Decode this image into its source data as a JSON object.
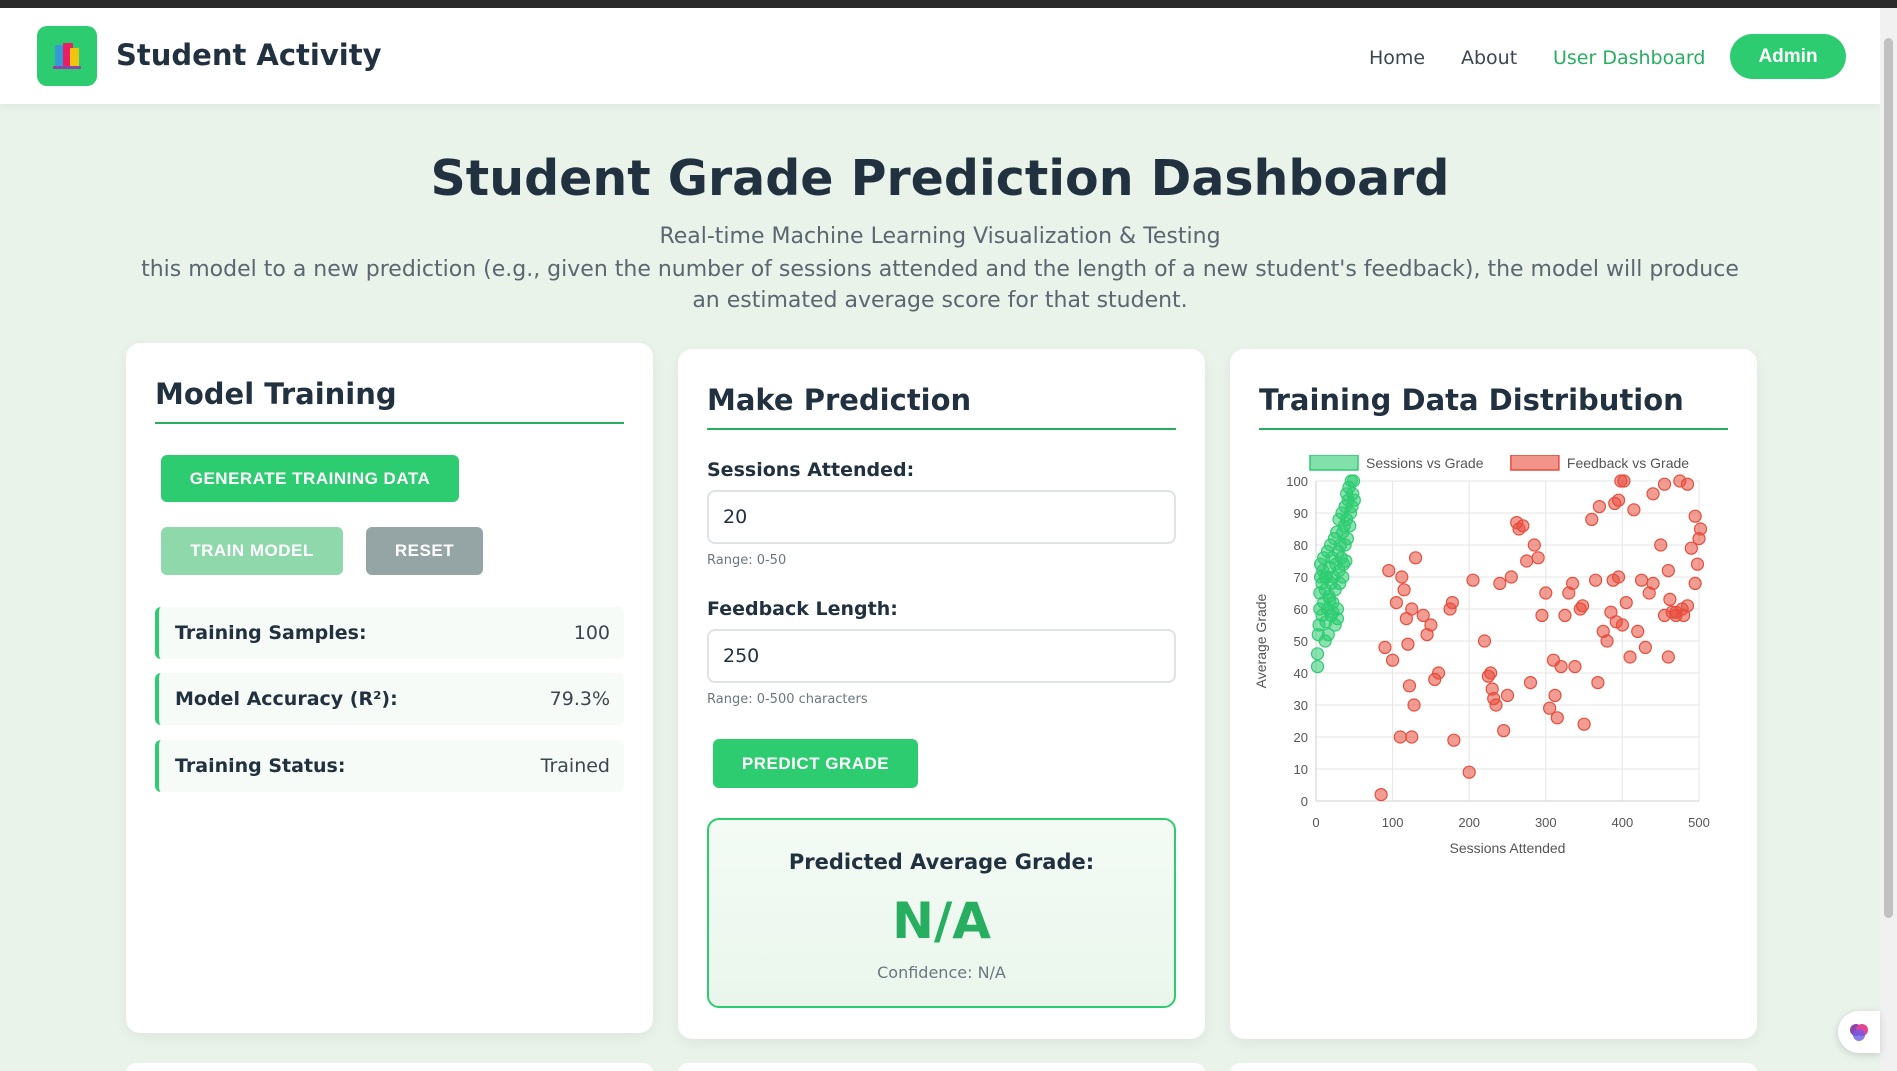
{
  "nav": {
    "brand": "Student Activity",
    "links": [
      "Home",
      "About",
      "User Dashboard"
    ],
    "admin_label": "Admin",
    "accent": "#2ecc71"
  },
  "header": {
    "title": "Student Grade Prediction Dashboard",
    "subtitle": "Real-time Machine Learning Visualization & Testing",
    "description": "this model to a new prediction (e.g., given the number of sessions attended and the length of a new student's feedback), the model will produce an estimated average score for that student."
  },
  "training": {
    "title": "Model Training",
    "generate_label": "GENERATE TRAINING DATA",
    "train_label": "TRAIN MODEL",
    "reset_label": "RESET",
    "stats": [
      {
        "label": "Training Samples:",
        "value": "100"
      },
      {
        "label": "Model Accuracy (R²):",
        "value": "79.3%"
      },
      {
        "label": "Training Status:",
        "value": "Trained"
      }
    ]
  },
  "prediction": {
    "title": "Make Prediction",
    "sessions_label": "Sessions Attended:",
    "sessions_value": "20",
    "sessions_hint": "Range: 0-50",
    "feedback_label": "Feedback Length:",
    "feedback_value": "250",
    "feedback_hint": "Range: 0-500 characters",
    "predict_label": "PREDICT GRADE",
    "result_title": "Predicted Average Grade:",
    "result_value": "N/A",
    "result_confidence": "Confidence: N/A"
  },
  "distribution": {
    "title": "Training Data Distribution"
  },
  "chart_data": {
    "type": "scatter",
    "xlabel": "Sessions Attended",
    "ylabel": "Average Grade",
    "xlim": [
      0,
      500
    ],
    "ylim": [
      0,
      100
    ],
    "xticks": [
      0,
      100,
      200,
      300,
      400,
      500
    ],
    "yticks": [
      0,
      10,
      20,
      30,
      40,
      50,
      60,
      70,
      80,
      90,
      100
    ],
    "grid": true,
    "legend_position": "top",
    "series": [
      {
        "name": "Sessions vs Grade",
        "color": "#2ecc71",
        "points": [
          [
            2,
            42
          ],
          [
            2,
            46
          ],
          [
            3,
            52
          ],
          [
            4,
            55
          ],
          [
            5,
            60
          ],
          [
            5,
            65
          ],
          [
            6,
            70
          ],
          [
            6,
            74
          ],
          [
            8,
            58
          ],
          [
            8,
            68
          ],
          [
            9,
            72
          ],
          [
            10,
            62
          ],
          [
            10,
            76
          ],
          [
            12,
            50
          ],
          [
            12,
            66
          ],
          [
            13,
            56
          ],
          [
            14,
            70
          ],
          [
            15,
            60
          ],
          [
            15,
            78
          ],
          [
            16,
            52
          ],
          [
            17,
            64
          ],
          [
            18,
            73
          ],
          [
            19,
            80
          ],
          [
            20,
            58
          ],
          [
            20,
            68
          ],
          [
            21,
            76
          ],
          [
            22,
            62
          ],
          [
            23,
            70
          ],
          [
            24,
            82
          ],
          [
            25,
            66
          ],
          [
            25,
            55
          ],
          [
            26,
            74
          ],
          [
            27,
            84
          ],
          [
            28,
            60
          ],
          [
            29,
            78
          ],
          [
            30,
            72
          ],
          [
            30,
            88
          ],
          [
            31,
            68
          ],
          [
            32,
            80
          ],
          [
            33,
            76
          ],
          [
            34,
            90
          ],
          [
            35,
            84
          ],
          [
            36,
            74
          ],
          [
            37,
            86
          ],
          [
            38,
            92
          ],
          [
            38,
            80
          ],
          [
            40,
            88
          ],
          [
            40,
            96
          ],
          [
            41,
            82
          ],
          [
            42,
            94
          ],
          [
            43,
            98
          ],
          [
            44,
            86
          ],
          [
            45,
            90
          ],
          [
            46,
            100
          ],
          [
            47,
            92
          ],
          [
            48,
            96
          ],
          [
            49,
            100
          ],
          [
            50,
            94
          ],
          [
            35,
            70
          ],
          [
            28,
            57
          ],
          [
            18,
            63
          ],
          [
            22,
            59
          ],
          [
            12,
            70
          ],
          [
            39,
            75
          ]
        ]
      },
      {
        "name": "Feedback vs Grade",
        "color": "#e74c3c",
        "points": [
          [
            85,
            2
          ],
          [
            100,
            44
          ],
          [
            110,
            20
          ],
          [
            90,
            48
          ],
          [
            95,
            72
          ],
          [
            105,
            62
          ],
          [
            115,
            66
          ],
          [
            112,
            70
          ],
          [
            118,
            57
          ],
          [
            125,
            60
          ],
          [
            120,
            49
          ],
          [
            130,
            76
          ],
          [
            122,
            36
          ],
          [
            128,
            30
          ],
          [
            125,
            20
          ],
          [
            140,
            58
          ],
          [
            145,
            52
          ],
          [
            150,
            55
          ],
          [
            155,
            38
          ],
          [
            160,
            40
          ],
          [
            175,
            60
          ],
          [
            178,
            62
          ],
          [
            180,
            19
          ],
          [
            200,
            9
          ],
          [
            205,
            69
          ],
          [
            220,
            50
          ],
          [
            225,
            39
          ],
          [
            228,
            40
          ],
          [
            230,
            35
          ],
          [
            232,
            32
          ],
          [
            235,
            30
          ],
          [
            240,
            68
          ],
          [
            245,
            22
          ],
          [
            250,
            33
          ],
          [
            255,
            70
          ],
          [
            262,
            87
          ],
          [
            265,
            85
          ],
          [
            270,
            86
          ],
          [
            275,
            75
          ],
          [
            280,
            37
          ],
          [
            285,
            80
          ],
          [
            290,
            76
          ],
          [
            295,
            58
          ],
          [
            300,
            65
          ],
          [
            305,
            29
          ],
          [
            310,
            44
          ],
          [
            312,
            33
          ],
          [
            315,
            26
          ],
          [
            320,
            42
          ],
          [
            325,
            58
          ],
          [
            330,
            65
          ],
          [
            335,
            68
          ],
          [
            338,
            42
          ],
          [
            345,
            60
          ],
          [
            348,
            61
          ],
          [
            350,
            24
          ],
          [
            365,
            69
          ],
          [
            368,
            37
          ],
          [
            370,
            92
          ],
          [
            375,
            53
          ],
          [
            380,
            50
          ],
          [
            385,
            59
          ],
          [
            388,
            69
          ],
          [
            390,
            93
          ],
          [
            392,
            56
          ],
          [
            395,
            94
          ],
          [
            398,
            100
          ],
          [
            400,
            55
          ],
          [
            402,
            100
          ],
          [
            405,
            62
          ],
          [
            410,
            45
          ],
          [
            415,
            91
          ],
          [
            420,
            53
          ],
          [
            425,
            69
          ],
          [
            430,
            48
          ],
          [
            435,
            65
          ],
          [
            440,
            96
          ],
          [
            450,
            80
          ],
          [
            455,
            58
          ],
          [
            460,
            45
          ],
          [
            465,
            59
          ],
          [
            462,
            63
          ],
          [
            470,
            59
          ],
          [
            475,
            100
          ],
          [
            478,
            60
          ],
          [
            480,
            58
          ],
          [
            485,
            99
          ],
          [
            490,
            79
          ],
          [
            495,
            89
          ],
          [
            500,
            82
          ],
          [
            498,
            74
          ],
          [
            505,
            85
          ],
          [
            485,
            61
          ],
          [
            495,
            68
          ],
          [
            470,
            58
          ],
          [
            455,
            99
          ],
          [
            460,
            72
          ],
          [
            440,
            68
          ],
          [
            395,
            70
          ],
          [
            360,
            88
          ]
        ]
      }
    ]
  }
}
